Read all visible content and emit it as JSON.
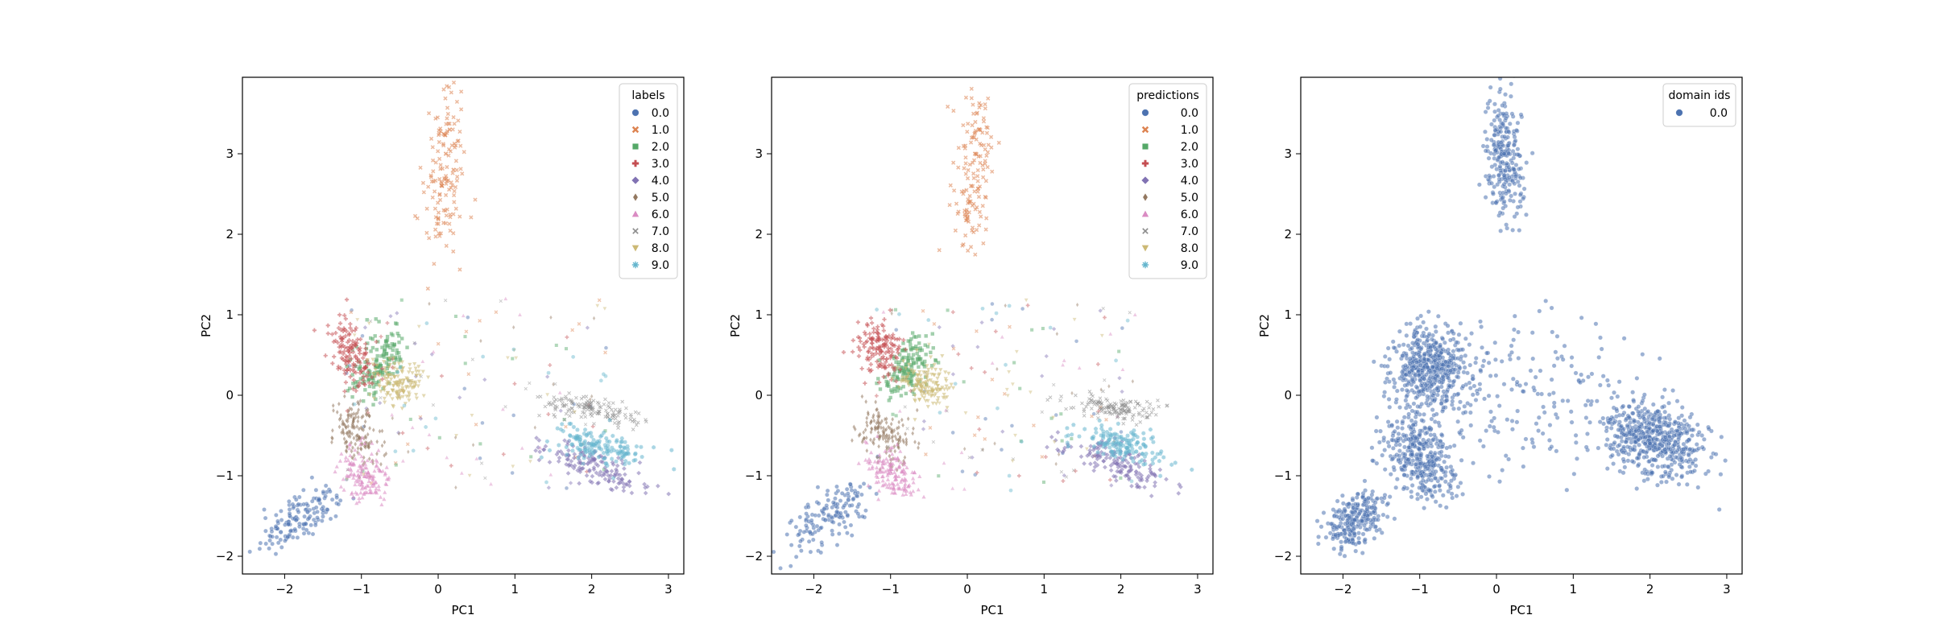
{
  "chart_data": [
    {
      "type": "scatter",
      "xlabel": "PC1",
      "ylabel": "PC2",
      "xlim": [
        -2.55,
        3.2
      ],
      "ylim": [
        -2.22,
        3.95
      ],
      "xticks": [
        "−2",
        "−1",
        "0",
        "1",
        "2",
        "3"
      ],
      "yticks": [
        "−2",
        "−1",
        "0",
        "1",
        "2",
        "3"
      ],
      "legend": {
        "title": "labels",
        "placement": "top-right",
        "entries": [
          "0.0",
          "1.0",
          "2.0",
          "3.0",
          "4.0",
          "5.0",
          "6.0",
          "7.0",
          "8.0",
          "9.0"
        ]
      },
      "series": [
        {
          "label": "0.0",
          "color": "#4c72b0",
          "marker": "circle",
          "points": [
            [
              -1.85,
              -1.55
            ],
            [
              -1.7,
              -1.45
            ],
            [
              -2.05,
              -1.7
            ],
            [
              -1.55,
              -1.3
            ],
            [
              -1.95,
              -1.6
            ]
          ]
        },
        {
          "label": "1.0",
          "color": "#dd8452",
          "marker": "x",
          "points": [
            [
              0.1,
              3.0
            ],
            [
              0.05,
              2.6
            ],
            [
              0.15,
              3.3
            ],
            [
              0.0,
              2.2
            ],
            [
              0.2,
              2.8
            ]
          ]
        },
        {
          "label": "2.0",
          "color": "#55a868",
          "marker": "square",
          "points": [
            [
              -0.8,
              0.35
            ],
            [
              -0.65,
              0.45
            ],
            [
              -0.9,
              0.2
            ],
            [
              -0.7,
              0.55
            ]
          ]
        },
        {
          "label": "3.0",
          "color": "#c44e52",
          "marker": "plus",
          "points": [
            [
              -1.15,
              0.6
            ],
            [
              -1.05,
              0.45
            ],
            [
              -1.25,
              0.7
            ],
            [
              -1.0,
              0.3
            ]
          ]
        },
        {
          "label": "4.0",
          "color": "#8172b3",
          "marker": "diamond",
          "points": [
            [
              1.95,
              -0.85
            ],
            [
              2.2,
              -0.95
            ],
            [
              1.7,
              -0.75
            ],
            [
              2.3,
              -1.0
            ]
          ]
        },
        {
          "label": "5.0",
          "color": "#937860",
          "marker": "diamond-thin",
          "points": [
            [
              -1.05,
              -0.5
            ],
            [
              -1.2,
              -0.4
            ],
            [
              -0.9,
              -0.6
            ],
            [
              -1.1,
              -0.3
            ]
          ]
        },
        {
          "label": "6.0",
          "color": "#da8bc3",
          "marker": "triangle-up",
          "points": [
            [
              -1.0,
              -0.95
            ],
            [
              -0.85,
              -1.05
            ],
            [
              -1.1,
              -0.85
            ],
            [
              -0.95,
              -1.15
            ]
          ]
        },
        {
          "label": "7.0",
          "color": "#8c8c8c",
          "marker": "x-thin",
          "points": [
            [
              1.9,
              -0.15
            ],
            [
              2.1,
              -0.2
            ],
            [
              1.75,
              -0.1
            ],
            [
              2.3,
              -0.25
            ]
          ]
        },
        {
          "label": "8.0",
          "color": "#ccb974",
          "marker": "triangle-down",
          "points": [
            [
              -0.55,
              0.15
            ],
            [
              -0.45,
              0.05
            ],
            [
              -0.65,
              0.25
            ],
            [
              -0.4,
              0.2
            ]
          ]
        },
        {
          "label": "9.0",
          "color": "#64b5cd",
          "marker": "asterisk",
          "points": [
            [
              2.0,
              -0.6
            ],
            [
              2.2,
              -0.7
            ],
            [
              1.85,
              -0.55
            ],
            [
              2.4,
              -0.7
            ]
          ]
        }
      ]
    },
    {
      "type": "scatter",
      "xlabel": "PC1",
      "ylabel": "PC2",
      "xlim": [
        -2.55,
        3.2
      ],
      "ylim": [
        -2.22,
        3.95
      ],
      "xticks": [
        "−2",
        "−1",
        "0",
        "1",
        "2",
        "3"
      ],
      "yticks": [
        "−2",
        "−1",
        "0",
        "1",
        "2",
        "3"
      ],
      "legend": {
        "title": "predictions",
        "placement": "top-right",
        "entries": [
          "0.0",
          "1.0",
          "2.0",
          "3.0",
          "4.0",
          "5.0",
          "6.0",
          "7.0",
          "8.0",
          "9.0"
        ]
      },
      "series": [
        {
          "label": "0.0",
          "color": "#4c72b0",
          "marker": "circle",
          "points": [
            [
              -1.85,
              -1.55
            ],
            [
              -1.7,
              -1.45
            ],
            [
              -2.05,
              -1.7
            ],
            [
              -1.55,
              -1.3
            ]
          ]
        },
        {
          "label": "1.0",
          "color": "#dd8452",
          "marker": "x",
          "points": [
            [
              0.1,
              3.0
            ],
            [
              0.05,
              2.6
            ],
            [
              0.15,
              3.3
            ],
            [
              0.0,
              2.2
            ]
          ]
        },
        {
          "label": "2.0",
          "color": "#55a868",
          "marker": "square",
          "points": [
            [
              -0.8,
              0.35
            ],
            [
              -0.65,
              0.45
            ],
            [
              -0.9,
              0.2
            ]
          ]
        },
        {
          "label": "3.0",
          "color": "#c44e52",
          "marker": "plus",
          "points": [
            [
              -1.15,
              0.6
            ],
            [
              -1.05,
              0.45
            ],
            [
              -1.25,
              0.7
            ]
          ]
        },
        {
          "label": "4.0",
          "color": "#8172b3",
          "marker": "diamond",
          "points": [
            [
              1.95,
              -0.85
            ],
            [
              2.2,
              -0.95
            ],
            [
              1.7,
              -0.75
            ]
          ]
        },
        {
          "label": "5.0",
          "color": "#937860",
          "marker": "diamond-thin",
          "points": [
            [
              -1.05,
              -0.5
            ],
            [
              -1.2,
              -0.4
            ],
            [
              -0.9,
              -0.6
            ]
          ]
        },
        {
          "label": "6.0",
          "color": "#da8bc3",
          "marker": "triangle-up",
          "points": [
            [
              -1.0,
              -0.95
            ],
            [
              -0.85,
              -1.05
            ],
            [
              -1.1,
              -0.85
            ]
          ]
        },
        {
          "label": "7.0",
          "color": "#8c8c8c",
          "marker": "x-thin",
          "points": [
            [
              1.9,
              -0.15
            ],
            [
              2.1,
              -0.2
            ],
            [
              1.75,
              -0.1
            ]
          ]
        },
        {
          "label": "8.0",
          "color": "#ccb974",
          "marker": "triangle-down",
          "points": [
            [
              -0.55,
              0.15
            ],
            [
              -0.45,
              0.05
            ],
            [
              -0.65,
              0.25
            ]
          ]
        },
        {
          "label": "9.0",
          "color": "#64b5cd",
          "marker": "asterisk",
          "points": [
            [
              2.0,
              -0.6
            ],
            [
              2.2,
              -0.7
            ],
            [
              1.85,
              -0.55
            ]
          ]
        }
      ]
    },
    {
      "type": "scatter",
      "xlabel": "PC1",
      "ylabel": "PC2",
      "xlim": [
        -2.55,
        3.2
      ],
      "ylim": [
        -2.22,
        3.95
      ],
      "xticks": [
        "−2",
        "−1",
        "0",
        "1",
        "2",
        "3"
      ],
      "yticks": [
        "−2",
        "−1",
        "0",
        "1",
        "2",
        "3"
      ],
      "legend": {
        "title": "domain ids",
        "placement": "top-right",
        "entries": [
          "0.0"
        ]
      },
      "series": [
        {
          "label": "0.0",
          "color": "#4c72b0",
          "marker": "circle",
          "points": [
            [
              -1.85,
              -1.55
            ],
            [
              0.1,
              3.0
            ],
            [
              -0.9,
              0.35
            ],
            [
              2.0,
              -0.6
            ],
            [
              -1.0,
              -0.6
            ],
            [
              2.1,
              -0.2
            ]
          ]
        }
      ]
    }
  ]
}
